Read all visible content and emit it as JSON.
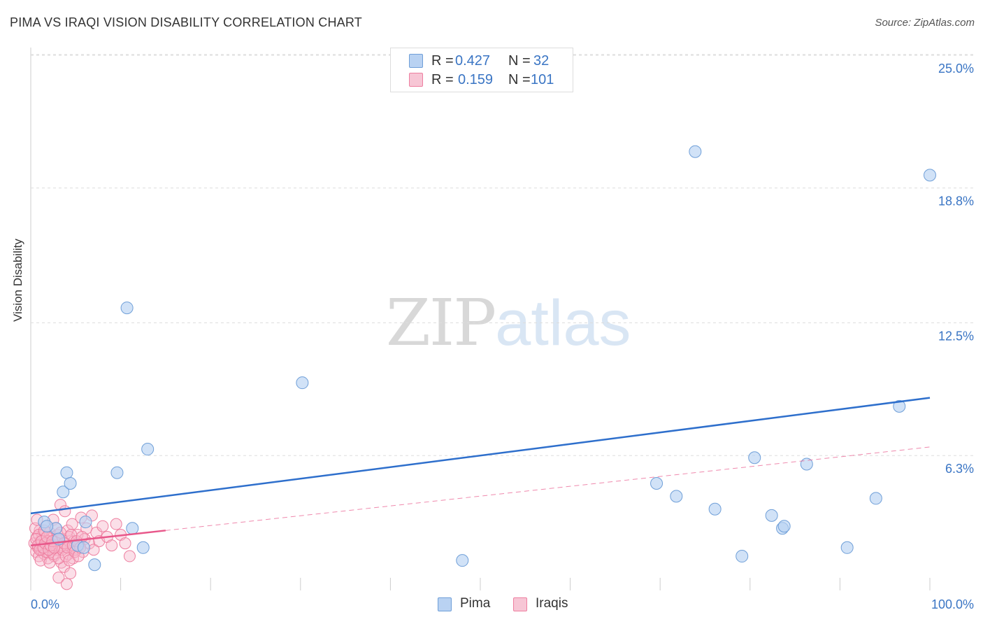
{
  "title": "PIMA VS IRAQI VISION DISABILITY CORRELATION CHART",
  "source": "Source: ZipAtlas.com",
  "watermark": {
    "zip": "ZIP",
    "atlas": "atlas"
  },
  "legend": {
    "rows": [
      {
        "r_label": "R =",
        "r_value": "0.427",
        "n_label": "N =",
        "n_value": "32"
      },
      {
        "r_label": "R =",
        "r_value": "0.159",
        "n_label": "N =",
        "n_value": "101"
      }
    ]
  },
  "colors": {
    "pima_fill": "#b9d2f2",
    "pima_stroke": "#6f9fd8",
    "pima_line": "#2e6fcc",
    "iraqi_fill": "#f7b8cb",
    "iraqi_stroke": "#ee7fa0",
    "iraqi_line": "#e8578a",
    "tick_label": "#3a75c4",
    "grid": "#dddddd"
  },
  "chart_data": {
    "type": "scatter",
    "title": "PIMA VS IRAQI VISION DISABILITY CORRELATION CHART",
    "xlabel": "",
    "ylabel": "Vision Disability",
    "xlim": [
      0,
      100
    ],
    "ylim": [
      0,
      26
    ],
    "x_tick_labels": [
      "0.0%",
      "100.0%"
    ],
    "y_ticks": [
      6.3,
      12.5,
      18.8,
      25.0
    ],
    "y_tick_labels": [
      "6.3%",
      "12.5%",
      "18.8%",
      "25.0%"
    ],
    "grid": "horizontal dashed",
    "legend_position": "top-center",
    "series": [
      {
        "name": "Pima",
        "r": 0.427,
        "n": 32,
        "trend": {
          "x": [
            0,
            100
          ],
          "y": [
            3.6,
            9.0
          ],
          "style": "solid"
        },
        "points": [
          [
            1.5,
            3.2
          ],
          [
            2.8,
            2.9
          ],
          [
            3.1,
            2.4
          ],
          [
            1.8,
            3.0
          ],
          [
            3.6,
            4.6
          ],
          [
            4.0,
            5.5
          ],
          [
            4.4,
            5.0
          ],
          [
            5.2,
            2.1
          ],
          [
            5.9,
            2.0
          ],
          [
            6.1,
            3.2
          ],
          [
            7.1,
            1.2
          ],
          [
            9.6,
            5.5
          ],
          [
            10.7,
            13.2
          ],
          [
            11.3,
            2.9
          ],
          [
            12.5,
            2.0
          ],
          [
            13.0,
            6.6
          ],
          [
            30.2,
            9.7
          ],
          [
            48.0,
            1.4
          ],
          [
            69.6,
            5.0
          ],
          [
            71.8,
            4.4
          ],
          [
            73.9,
            20.5
          ],
          [
            76.1,
            3.8
          ],
          [
            79.1,
            1.6
          ],
          [
            80.5,
            6.2
          ],
          [
            82.4,
            3.5
          ],
          [
            83.6,
            2.9
          ],
          [
            86.3,
            5.9
          ],
          [
            90.8,
            2.0
          ],
          [
            94.0,
            4.3
          ],
          [
            96.6,
            8.6
          ],
          [
            100.0,
            19.4
          ],
          [
            83.8,
            3.0
          ]
        ]
      },
      {
        "name": "Iraqis",
        "r": 0.159,
        "n": 101,
        "trend": {
          "x": [
            0,
            15
          ],
          "y": [
            2.1,
            2.8
          ],
          "style": "solid",
          "extended": {
            "x": [
              15,
              100
            ],
            "y": [
              2.8,
              6.7
            ],
            "style": "dashed"
          }
        },
        "points": [
          [
            0.4,
            2.2
          ],
          [
            0.6,
            1.8
          ],
          [
            0.7,
            2.5
          ],
          [
            0.8,
            2.0
          ],
          [
            0.9,
            1.6
          ],
          [
            1.0,
            2.8
          ],
          [
            1.1,
            2.3
          ],
          [
            1.2,
            1.9
          ],
          [
            1.3,
            2.6
          ],
          [
            1.4,
            2.1
          ],
          [
            1.5,
            1.7
          ],
          [
            1.6,
            2.4
          ],
          [
            1.7,
            3.0
          ],
          [
            1.8,
            2.0
          ],
          [
            1.9,
            1.5
          ],
          [
            2.0,
            2.2
          ],
          [
            2.1,
            2.7
          ],
          [
            2.2,
            1.8
          ],
          [
            2.3,
            2.5
          ],
          [
            2.4,
            2.0
          ],
          [
            2.5,
            3.3
          ],
          [
            2.6,
            1.6
          ],
          [
            2.7,
            2.3
          ],
          [
            2.8,
            2.9
          ],
          [
            2.9,
            1.9
          ],
          [
            3.0,
            2.6
          ],
          [
            3.1,
            0.6
          ],
          [
            3.2,
            2.1
          ],
          [
            3.3,
            4.0
          ],
          [
            3.4,
            1.3
          ],
          [
            3.5,
            2.4
          ],
          [
            3.6,
            2.0
          ],
          [
            3.7,
            1.1
          ],
          [
            3.8,
            3.7
          ],
          [
            3.9,
            2.2
          ],
          [
            4.0,
            0.3
          ],
          [
            4.1,
            2.8
          ],
          [
            4.2,
            1.7
          ],
          [
            4.3,
            2.5
          ],
          [
            4.4,
            0.8
          ],
          [
            4.5,
            2.0
          ],
          [
            4.6,
            3.1
          ],
          [
            4.7,
            1.5
          ],
          [
            4.8,
            2.3
          ],
          [
            5.0,
            1.9
          ],
          [
            5.2,
            2.6
          ],
          [
            5.4,
            2.1
          ],
          [
            5.6,
            3.4
          ],
          [
            5.8,
            1.8
          ],
          [
            6.0,
            2.4
          ],
          [
            6.2,
            2.9
          ],
          [
            6.5,
            2.2
          ],
          [
            6.8,
            3.5
          ],
          [
            7.0,
            1.9
          ],
          [
            7.3,
            2.7
          ],
          [
            7.6,
            2.3
          ],
          [
            8.0,
            3.0
          ],
          [
            8.5,
            2.5
          ],
          [
            9.0,
            2.1
          ],
          [
            9.5,
            3.1
          ],
          [
            10.0,
            2.6
          ],
          [
            10.5,
            2.2
          ],
          [
            11.0,
            1.6
          ],
          [
            0.5,
            2.9
          ],
          [
            0.7,
            3.3
          ],
          [
            0.9,
            2.6
          ],
          [
            1.1,
            1.4
          ],
          [
            1.3,
            2.0
          ],
          [
            1.5,
            2.8
          ],
          [
            1.7,
            1.8
          ],
          [
            1.9,
            2.3
          ],
          [
            2.1,
            1.3
          ],
          [
            2.3,
            2.0
          ],
          [
            2.5,
            1.7
          ],
          [
            2.7,
            2.1
          ],
          [
            2.9,
            2.4
          ],
          [
            3.1,
            1.5
          ],
          [
            3.3,
            2.7
          ],
          [
            3.5,
            1.9
          ],
          [
            3.7,
            2.2
          ],
          [
            3.9,
            1.6
          ],
          [
            4.1,
            2.0
          ],
          [
            4.3,
            1.4
          ],
          [
            4.5,
            2.6
          ],
          [
            4.7,
            2.1
          ],
          [
            4.9,
            1.8
          ],
          [
            5.1,
            2.3
          ],
          [
            5.3,
            1.6
          ],
          [
            5.5,
            2.0
          ],
          [
            5.7,
            2.5
          ],
          [
            0.6,
            2.4
          ],
          [
            0.8,
            2.1
          ],
          [
            1.0,
            1.9
          ],
          [
            1.2,
            2.3
          ],
          [
            1.4,
            2.0
          ],
          [
            1.6,
            2.2
          ],
          [
            1.8,
            2.5
          ],
          [
            2.0,
            1.9
          ],
          [
            2.2,
            2.1
          ],
          [
            2.4,
            2.3
          ],
          [
            2.6,
            2.0
          ]
        ]
      }
    ]
  }
}
